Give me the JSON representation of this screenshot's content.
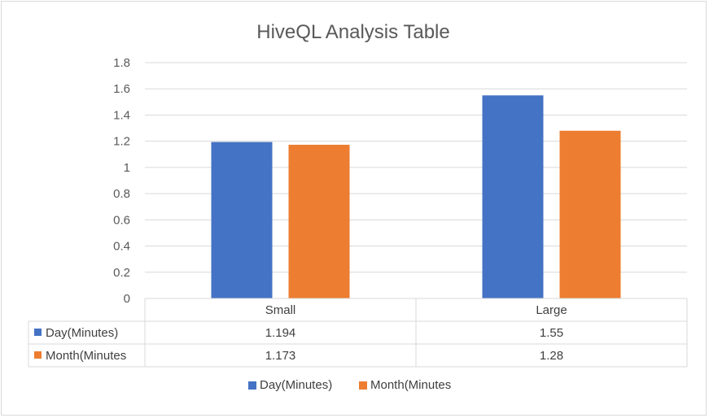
{
  "chart_data": {
    "type": "bar",
    "title": "HiveQL Analysis Table",
    "categories": [
      "Small",
      "Large"
    ],
    "series": [
      {
        "name": "Day(Minutes)",
        "values": [
          1.194,
          1.55
        ],
        "value_labels": [
          "1.194",
          "1.55"
        ],
        "color": "#4472c4"
      },
      {
        "name": "Month(Minutes",
        "values": [
          1.173,
          1.28
        ],
        "value_labels": [
          "1.173",
          "1.28"
        ],
        "color": "#ed7d31"
      }
    ],
    "ylim": [
      0,
      1.8
    ],
    "yticks": [
      "0",
      "0.2",
      "0.4",
      "0.6",
      "0.8",
      "1",
      "1.2",
      "1.4",
      "1.6",
      "1.8"
    ],
    "grid": true,
    "legend_position": "bottom",
    "data_table": true
  }
}
